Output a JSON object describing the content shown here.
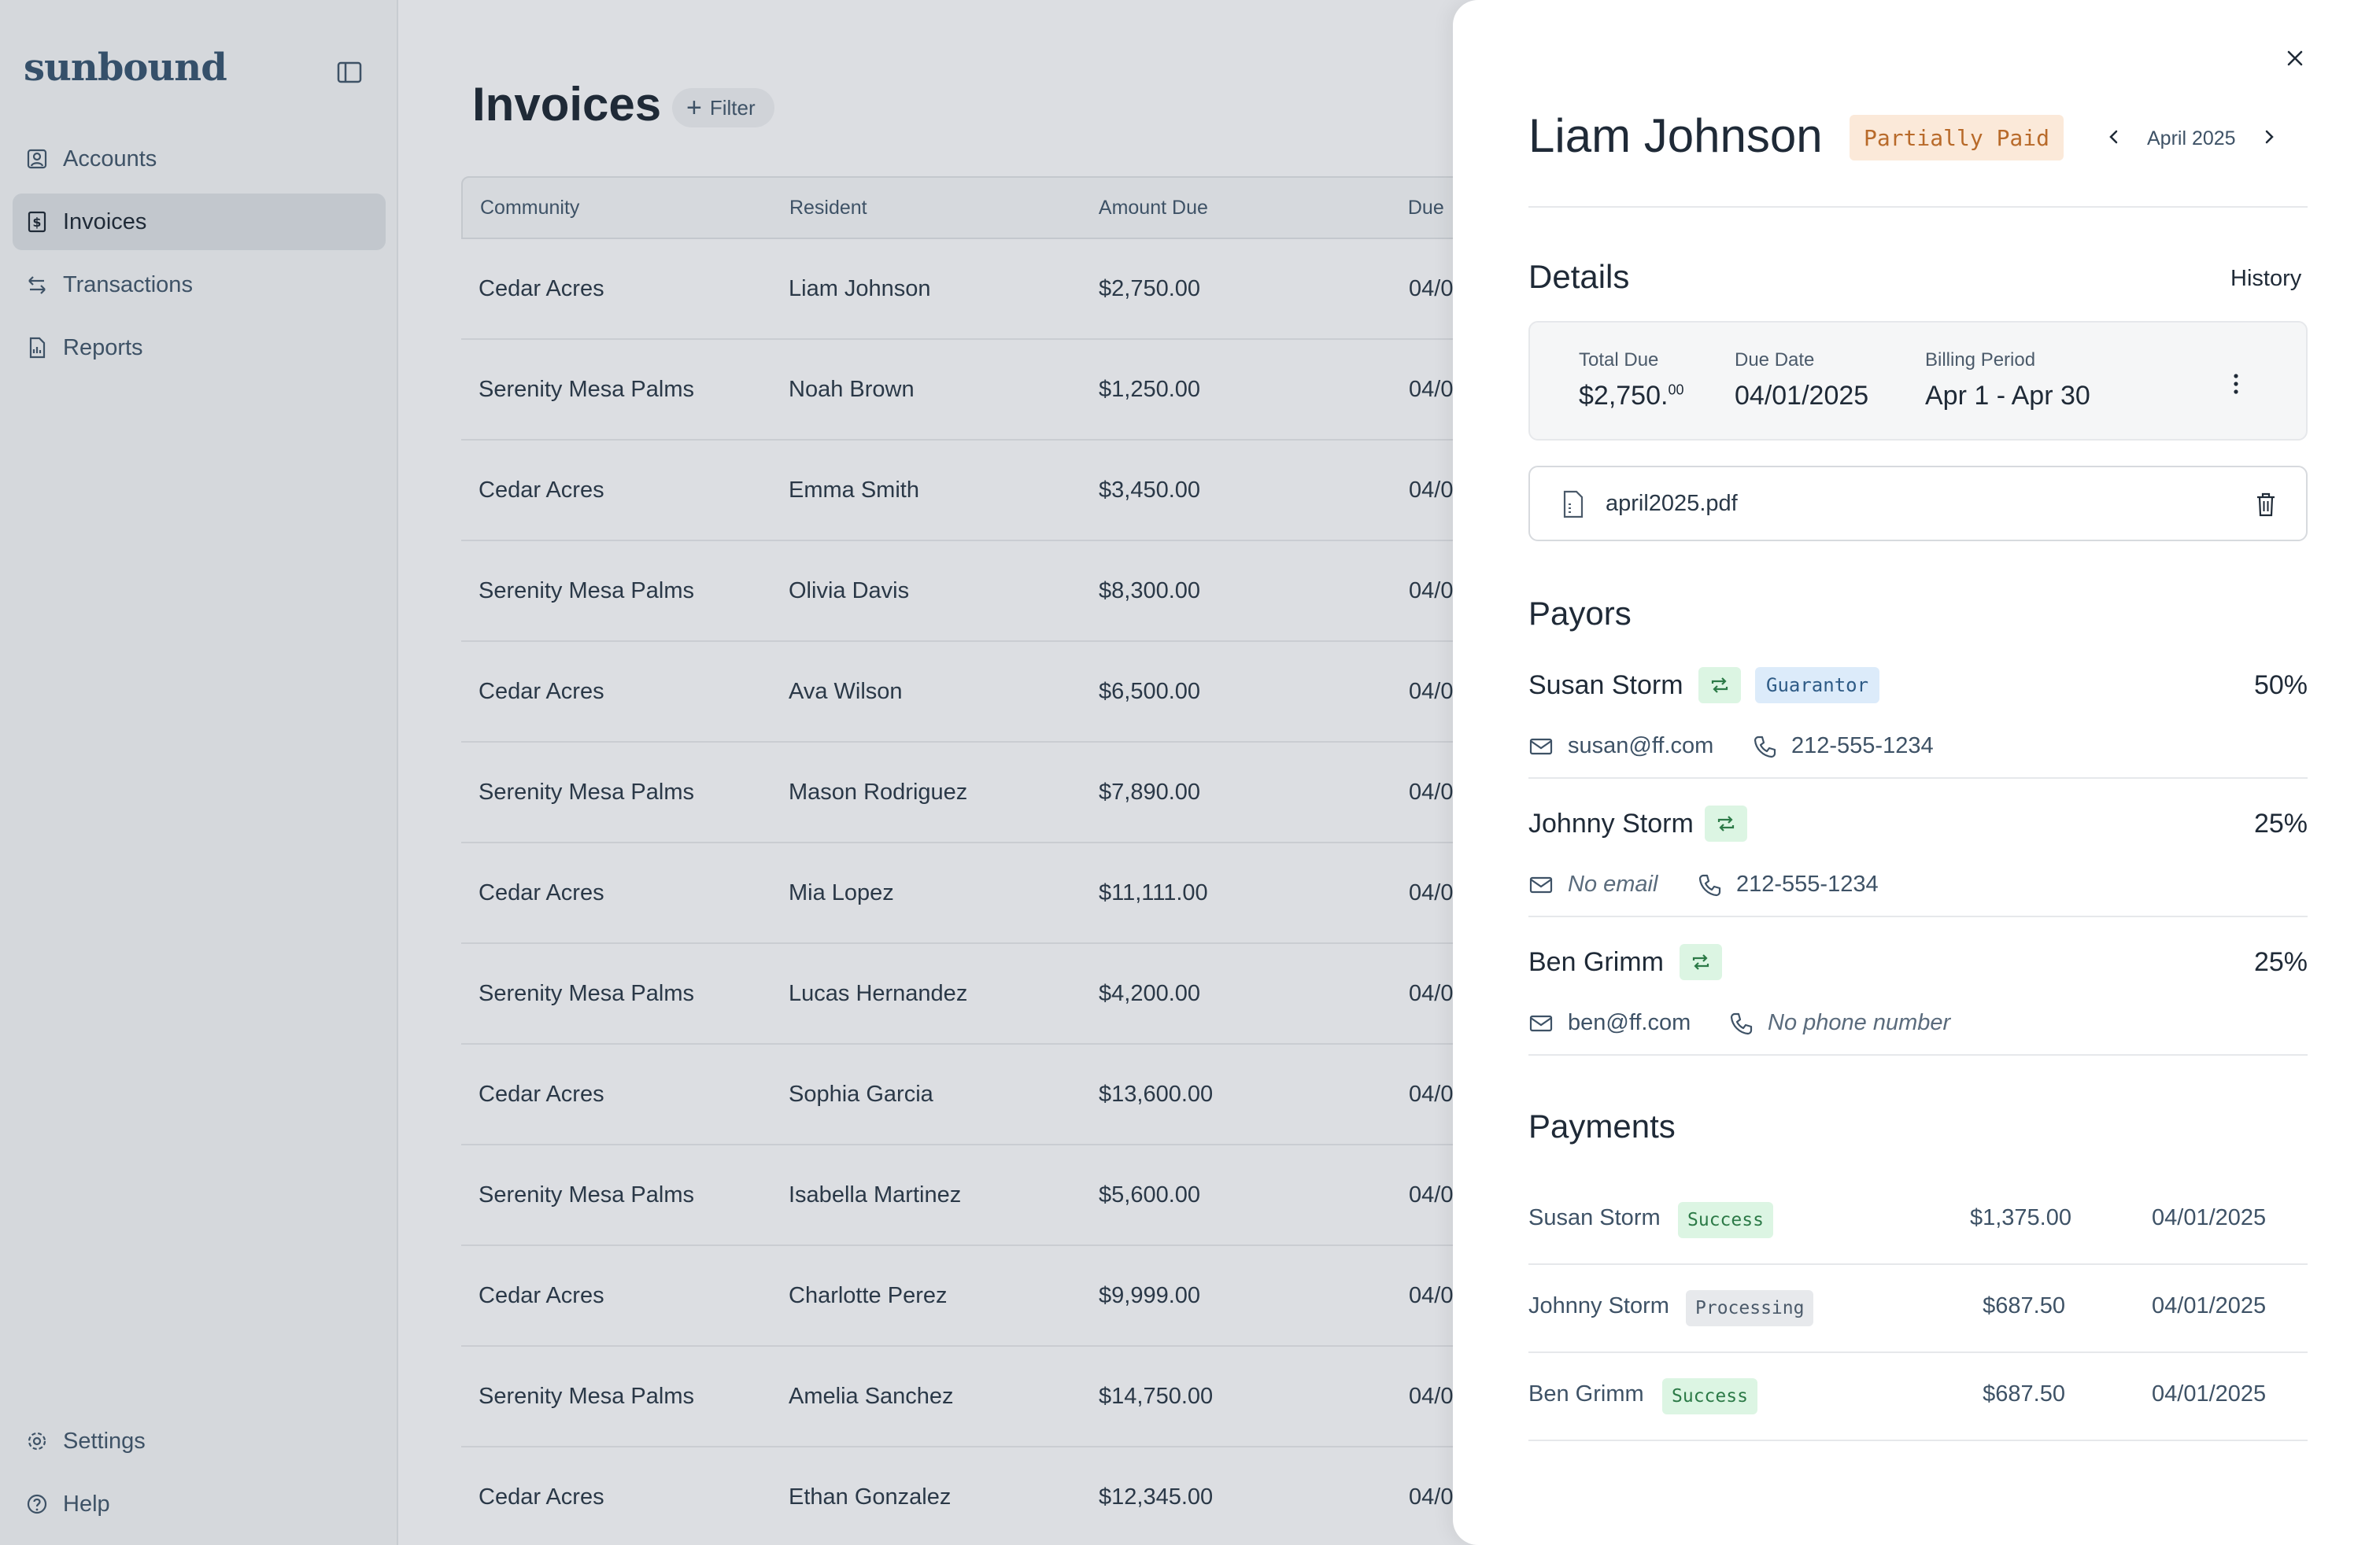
{
  "app": {
    "brand": "sunbound"
  },
  "sidebar": {
    "items": [
      {
        "label": "Accounts",
        "icon": "user-square-icon"
      },
      {
        "label": "Invoices",
        "icon": "dollar-receipt-icon",
        "active": true
      },
      {
        "label": "Transactions",
        "icon": "arrows-exchange-icon"
      },
      {
        "label": "Reports",
        "icon": "report-file-icon"
      }
    ],
    "bottom": [
      {
        "label": "Settings",
        "icon": "gear-icon"
      },
      {
        "label": "Help",
        "icon": "help-circle-icon"
      }
    ]
  },
  "main": {
    "title": "Invoices",
    "filter_label": "Filter",
    "columns": [
      "Community",
      "Resident",
      "Amount Due",
      "Due"
    ],
    "rows": [
      {
        "community": "Cedar Acres",
        "resident": "Liam Johnson",
        "amount": "$2,750.00",
        "due": "04/0"
      },
      {
        "community": "Serenity Mesa Palms",
        "resident": "Noah Brown",
        "amount": "$1,250.00",
        "due": "04/0"
      },
      {
        "community": "Cedar Acres",
        "resident": "Emma Smith",
        "amount": "$3,450.00",
        "due": "04/0"
      },
      {
        "community": "Serenity Mesa Palms",
        "resident": "Olivia Davis",
        "amount": "$8,300.00",
        "due": "04/0"
      },
      {
        "community": "Cedar Acres",
        "resident": "Ava Wilson",
        "amount": "$6,500.00",
        "due": "04/0"
      },
      {
        "community": "Serenity Mesa Palms",
        "resident": "Mason Rodriguez",
        "amount": "$7,890.00",
        "due": "04/0"
      },
      {
        "community": "Cedar Acres",
        "resident": "Mia Lopez",
        "amount": "$11,111.00",
        "due": "04/0"
      },
      {
        "community": "Serenity Mesa Palms",
        "resident": "Lucas Hernandez",
        "amount": "$4,200.00",
        "due": "04/0"
      },
      {
        "community": "Cedar Acres",
        "resident": "Sophia Garcia",
        "amount": "$13,600.00",
        "due": "04/0"
      },
      {
        "community": "Serenity Mesa Palms",
        "resident": "Isabella Martinez",
        "amount": "$5,600.00",
        "due": "04/0"
      },
      {
        "community": "Cedar Acres",
        "resident": "Charlotte Perez",
        "amount": "$9,999.00",
        "due": "04/0"
      },
      {
        "community": "Serenity Mesa Palms",
        "resident": "Amelia Sanchez",
        "amount": "$14,750.00",
        "due": "04/0"
      },
      {
        "community": "Cedar Acres",
        "resident": "Ethan Gonzalez",
        "amount": "$12,345.00",
        "due": "04/0"
      }
    ]
  },
  "drawer": {
    "name": "Liam Johnson",
    "status": "Partially Paid",
    "month": "April 2025",
    "details_title": "Details",
    "history_label": "History",
    "details": {
      "total_due_label": "Total Due",
      "total_due_main": "$2,750.",
      "total_due_cents": "00",
      "due_date_label": "Due Date",
      "due_date": "04/01/2025",
      "billing_period_label": "Billing Period",
      "billing_period": "Apr 1 - Apr 30"
    },
    "file_name": "april2025.pdf",
    "payors_title": "Payors",
    "payors": [
      {
        "name": "Susan Storm",
        "role": "Guarantor",
        "percent": "50%",
        "email": "susan@ff.com",
        "phone": "212-555-1234"
      },
      {
        "name": "Johnny Storm",
        "percent": "25%",
        "email": "No email",
        "phone": "212-555-1234"
      },
      {
        "name": "Ben Grimm",
        "percent": "25%",
        "email": "ben@ff.com",
        "phone": "No phone number"
      }
    ],
    "payments_title": "Payments",
    "payments": [
      {
        "name": "Susan Storm",
        "status": "Success",
        "amount": "$1,375.00",
        "date": "04/01/2025"
      },
      {
        "name": "Johnny Storm",
        "status": "Processing",
        "amount": "$687.50",
        "date": "04/01/2025"
      },
      {
        "name": "Ben Grimm",
        "status": "Success",
        "amount": "$687.50",
        "date": "04/01/2025"
      }
    ]
  },
  "colors": {
    "status_partial_bg": "#fbe9d9",
    "status_partial_text": "#b86a2a",
    "success_bg": "#dcf5e3",
    "guarantor_bg": "#dcebfa"
  }
}
